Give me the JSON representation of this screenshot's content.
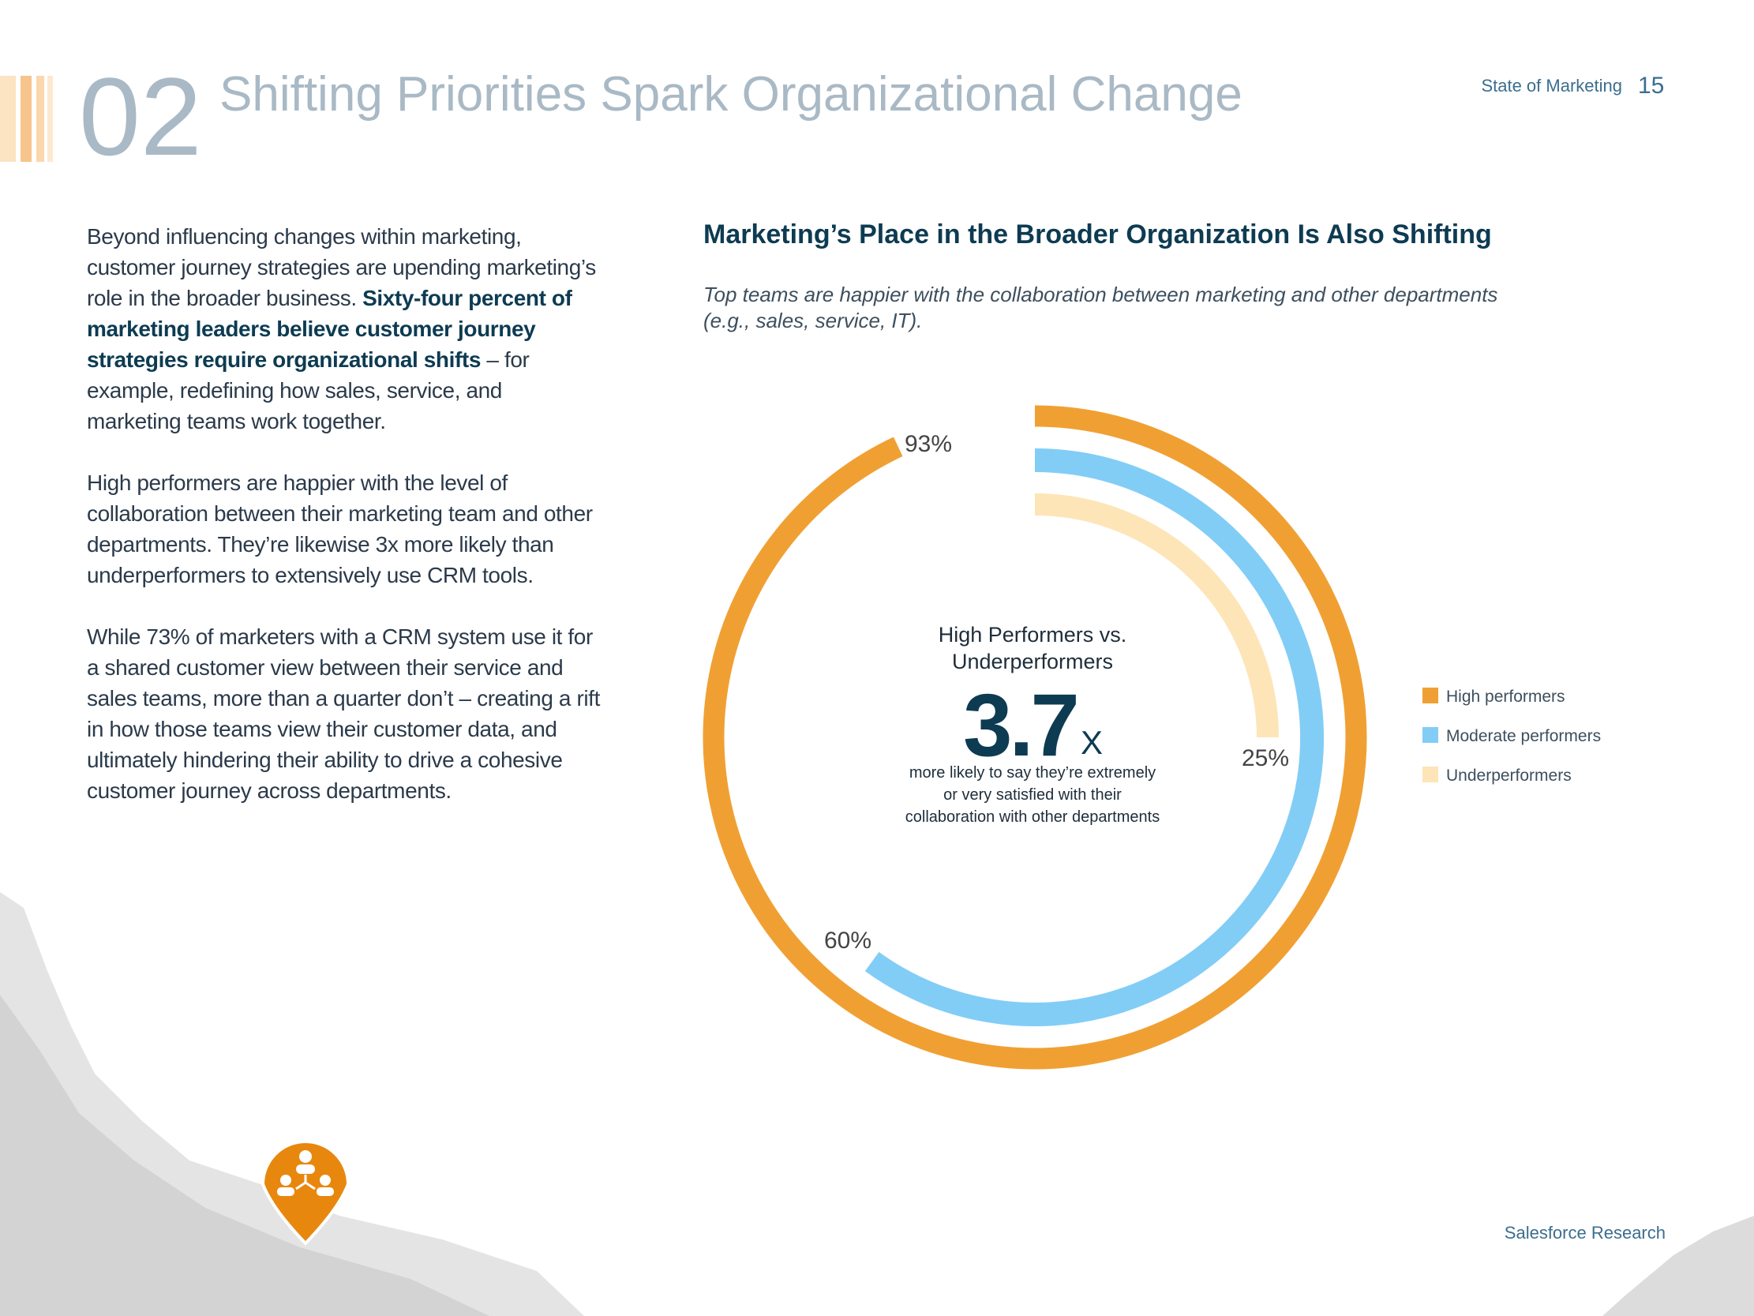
{
  "header": {
    "number": "02",
    "title": "Shifting Priorities Spark Organizational Change",
    "report": "State of Marketing",
    "page": 15
  },
  "body": {
    "intro": "Beyond influencing changes within marketing, customer journey strategies are upending marketing’s role in the broader business. ",
    "intro_bold": "Sixty-four percent of marketing leaders believe customer journey strategies require organizational shifts",
    "intro_after": " – for example, redefining how sales, service, and marketing teams work together.",
    "paragraphs": [
      "High performers are happier with the level of collaboration between their marketing team and other departments. They’re likewise 3x more likely than underperformers to extensively use CRM tools.",
      "While 73% of marketers with a CRM system use it for a shared customer view between their service and sales teams, more than a quarter don’t – creating a rift in how those teams view their customer data, and ultimately hindering their ability to drive a cohesive customer journey across departments."
    ]
  },
  "chart_data": {
    "type": "radial-bar",
    "title": "Marketing’s Place in the Broader Organization Is Also Shifting",
    "subtitle": [
      "Top teams are happier with the collaboration between marketing and other departments",
      "(e.g., sales, service, IT)."
    ],
    "center_title": [
      "High Performers vs.",
      "Underperformers"
    ],
    "center_value": 3.7,
    "center_unit": "X",
    "center_note": [
      "more likely to say they’re extremely",
      "or very satisfied with their",
      "collaboration with other departments"
    ],
    "ylim": [
      0,
      100
    ],
    "series": [
      {
        "name": "High performers",
        "color": "#f0a033",
        "values": [
          93
        ],
        "value_labels": [
          "93%"
        ]
      },
      {
        "name": "Moderate performers",
        "color": "#82cdf6",
        "values": [
          60
        ],
        "value_labels": [
          "60%"
        ]
      },
      {
        "name": "Underperformers",
        "color": "#fde5b7",
        "values": [
          25
        ],
        "value_labels": [
          "25%"
        ]
      }
    ]
  },
  "footer": "Salesforce Research"
}
